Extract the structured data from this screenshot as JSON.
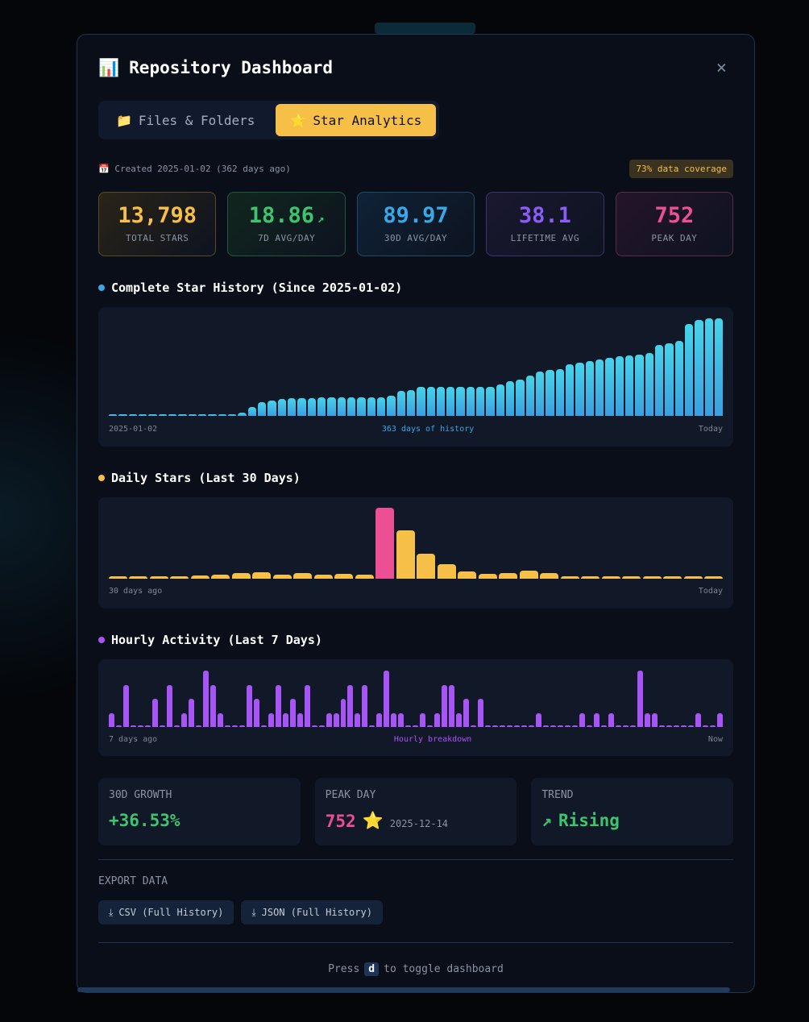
{
  "header": {
    "icon": "📊",
    "title": "Repository Dashboard",
    "close": "×"
  },
  "tabs": [
    {
      "icon": "📁",
      "label": "Files & Folders",
      "active": false
    },
    {
      "icon": "⭐",
      "label": "Star Analytics",
      "active": true
    }
  ],
  "meta": {
    "icon": "📅",
    "created": "Created 2025-01-02 (362 days ago)",
    "coverage": "73% data coverage"
  },
  "stats": [
    {
      "value": "13,798",
      "label": "TOTAL STARS",
      "color": "#f6bf47",
      "bg": "#2a2418",
      "border": "#5a4a25"
    },
    {
      "value": "18.86",
      "label": "7D AVG/DAY",
      "color": "#3ec46d",
      "bg": "#11261e",
      "border": "#1f5a3a",
      "trend": "↗"
    },
    {
      "value": "89.97",
      "label": "30D AVG/DAY",
      "color": "#38a8e8",
      "bg": "#0f2236",
      "border": "#1f4a6a"
    },
    {
      "value": "38.1",
      "label": "LIFETIME AVG",
      "color": "#8b5cf6",
      "bg": "#1a1830",
      "border": "#3b3470"
    },
    {
      "value": "752",
      "label": "PEAK DAY",
      "color": "#ec4f93",
      "bg": "#24142a",
      "border": "#5a2a48"
    }
  ],
  "chart_data": [
    {
      "type": "bar",
      "title": "Complete Star History (Since 2025-01-02)",
      "color": "#3ec0e8",
      "x_start": "2025-01-02",
      "x_center": "363 days of history",
      "x_end": "Today",
      "values": [
        0,
        0,
        0,
        0,
        0,
        0,
        0,
        0,
        0,
        0,
        0,
        0,
        0,
        450,
        1290,
        1890,
        2190,
        2340,
        2460,
        2460,
        2460,
        2570,
        2570,
        2570,
        2570,
        2570,
        2570,
        2650,
        2870,
        3590,
        3700,
        4160,
        4160,
        4160,
        4160,
        4160,
        4160,
        4160,
        4160,
        4460,
        4910,
        5180,
        5750,
        6310,
        6500,
        6650,
        7330,
        7560,
        7790,
        7940,
        8240,
        8470,
        8580,
        8690,
        8920,
        10050,
        10280,
        10580,
        12970,
        13610,
        13798,
        13798
      ],
      "ylim": [
        0,
        13798
      ]
    },
    {
      "type": "bar",
      "title": "Daily Stars (Last 30 Days)",
      "color": "#f6bf47",
      "highlight_color": "#ec4f93",
      "x_start": "30 days ago",
      "x_end": "Today",
      "values": [
        23,
        14,
        14,
        23,
        31,
        40,
        57,
        66,
        40,
        57,
        40,
        49,
        40,
        752,
        512,
        263,
        152,
        74,
        49,
        57,
        83,
        57,
        23,
        23,
        23,
        23,
        23,
        14,
        14,
        14
      ],
      "ylim": [
        0,
        752
      ]
    },
    {
      "type": "bar",
      "title": "Hourly Activity (Last 7 Days)",
      "color": "#a855f7",
      "x_start": "7 days ago",
      "x_center": "Hourly breakdown",
      "x_end": "Now",
      "values": [
        1,
        0,
        3,
        0,
        0,
        0,
        2,
        0,
        3,
        0,
        1,
        2,
        0,
        4,
        3,
        1,
        0,
        0,
        0,
        3,
        2,
        0,
        1,
        3,
        1,
        2,
        1,
        3,
        0,
        0,
        1,
        1,
        2,
        3,
        1,
        3,
        0,
        1,
        4,
        1,
        1,
        0,
        0,
        1,
        0,
        1,
        3,
        3,
        1,
        2,
        0,
        2,
        0,
        0,
        0,
        0,
        0,
        0,
        0,
        1,
        0,
        0,
        0,
        0,
        0,
        1,
        0,
        1,
        0,
        1,
        0,
        0,
        0,
        4,
        1,
        1,
        0,
        0,
        0,
        0,
        0,
        1,
        0,
        0,
        1
      ],
      "ylim": [
        0,
        4
      ]
    }
  ],
  "cards": [
    {
      "label": "30D GROWTH",
      "value": "+36.53%",
      "color": "#3ec46d"
    },
    {
      "label": "PEAK DAY",
      "value": "752",
      "icon": "⭐",
      "date": "2025-12-14",
      "color": "#ec4f93"
    },
    {
      "label": "TREND",
      "value": "Rising",
      "icon": "↗",
      "color": "#3ec46d"
    }
  ],
  "export": {
    "label": "EXPORT DATA",
    "buttons": [
      "CSV (Full History)",
      "JSON (Full History)"
    ]
  },
  "footer": {
    "pre": "Press",
    "key": "d",
    "post": "to toggle dashboard"
  }
}
